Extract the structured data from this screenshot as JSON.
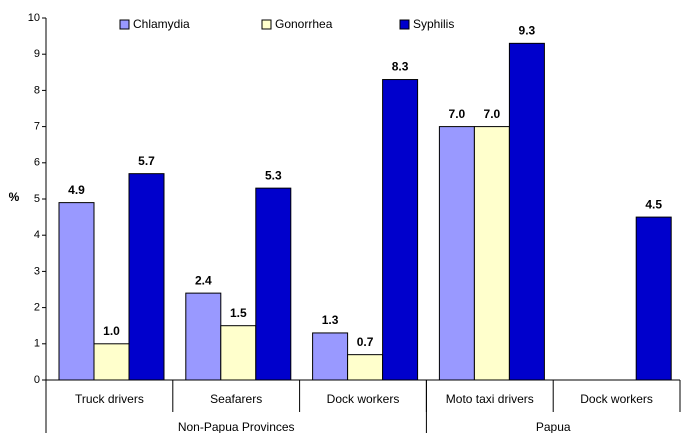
{
  "chart_data": {
    "type": "bar",
    "ylabel": "%",
    "groups": [
      {
        "name": "Non-Papua Provinces",
        "categories": [
          "Truck drivers",
          "Seafarers",
          "Dock workers"
        ]
      },
      {
        "name": "Papua",
        "categories": [
          "Moto taxi drivers",
          "Dock workers"
        ]
      }
    ],
    "series": [
      {
        "name": "Chlamydia",
        "color": "#9999ff",
        "values": [
          4.9,
          2.4,
          1.3,
          7.0,
          null
        ],
        "value_labels": [
          "4.9",
          "2.4",
          "1.3",
          "7.0",
          null
        ]
      },
      {
        "name": "Gonorrhea",
        "color": "#ffffcc",
        "values": [
          1.0,
          1.5,
          0.7,
          7.0,
          null
        ],
        "value_labels": [
          "1.0",
          "1.5",
          "0.7",
          "7.0",
          null
        ]
      },
      {
        "name": "Syphilis",
        "color": "#0000cc",
        "values": [
          5.7,
          5.3,
          8.3,
          9.3,
          4.5
        ],
        "value_labels": [
          "5.7",
          "5.3",
          "8.3",
          "9.3",
          "4.5"
        ]
      }
    ],
    "ylim": [
      0,
      10
    ],
    "yticks": [
      0,
      1,
      2,
      3,
      4,
      5,
      6,
      7,
      8,
      9,
      10
    ]
  }
}
